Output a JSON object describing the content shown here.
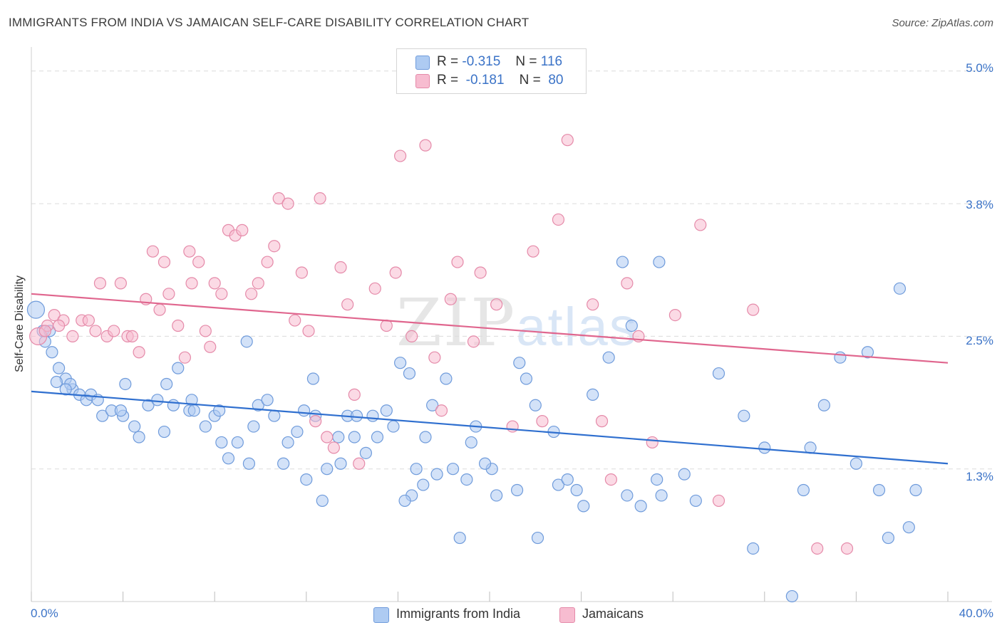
{
  "title": "IMMIGRANTS FROM INDIA VS JAMAICAN SELF-CARE DISABILITY CORRELATION CHART",
  "source": "Source: ZipAtlas.com",
  "watermark": {
    "zip": "ZIP",
    "atlas": "atlas"
  },
  "legend": {
    "series1": {
      "r_label": "R =",
      "r_value": "-0.315",
      "n_label": "N =",
      "n_value": "116"
    },
    "series2": {
      "r_label": "R =",
      "r_value": "-0.181",
      "n_label": "N =",
      "n_value": "80"
    }
  },
  "colors": {
    "blue_fill": "#aecbf2",
    "blue_stroke": "#6f9bdb",
    "blue_line": "#2f6fcf",
    "pink_fill": "#f7bcd0",
    "pink_stroke": "#e58aa9",
    "pink_line": "#e0668e",
    "tick_text": "#3b73c7",
    "grid": "#dcdcdc"
  },
  "chart_data": {
    "type": "scatter",
    "title": "IMMIGRANTS FROM INDIA VS JAMAICAN SELF-CARE DISABILITY CORRELATION CHART",
    "xlabel": "",
    "ylabel": "Self-Care Disability",
    "xlim": [
      0,
      40
    ],
    "ylim": [
      0,
      5.2
    ],
    "y_ticks": [
      {
        "value": 1.25,
        "label": "1.3%"
      },
      {
        "value": 2.5,
        "label": "2.5%"
      },
      {
        "value": 3.75,
        "label": "3.8%"
      },
      {
        "value": 5.0,
        "label": "5.0%"
      }
    ],
    "x_ticks": [
      {
        "value": 0,
        "label": "0.0%"
      },
      {
        "value": 40,
        "label": "40.0%"
      }
    ],
    "x_minor_ticks": [
      0,
      4,
      8,
      12,
      16,
      20,
      24,
      28,
      32,
      36,
      40
    ],
    "series": [
      {
        "name": "Immigrants from India",
        "color": "blue",
        "trend": {
          "x0": 0,
          "y0": 1.98,
          "x1": 40,
          "y1": 1.3
        },
        "points": [
          [
            0.2,
            2.75
          ],
          [
            0.5,
            2.55
          ],
          [
            0.6,
            2.45
          ],
          [
            0.9,
            2.35
          ],
          [
            1.2,
            2.2
          ],
          [
            1.5,
            2.1
          ],
          [
            1.8,
            2.0
          ],
          [
            2.1,
            1.95
          ],
          [
            2.4,
            1.9
          ],
          [
            1.1,
            2.07
          ],
          [
            1.7,
            2.05
          ],
          [
            2.6,
            1.95
          ],
          [
            3.1,
            1.75
          ],
          [
            3.5,
            1.8
          ],
          [
            4.0,
            1.75
          ],
          [
            4.5,
            1.65
          ],
          [
            4.7,
            1.55
          ],
          [
            5.1,
            1.85
          ],
          [
            5.5,
            1.9
          ],
          [
            5.8,
            1.6
          ],
          [
            5.9,
            2.05
          ],
          [
            6.2,
            1.85
          ],
          [
            6.9,
            1.8
          ],
          [
            7.0,
            1.9
          ],
          [
            7.6,
            1.65
          ],
          [
            8.0,
            1.75
          ],
          [
            8.3,
            1.5
          ],
          [
            8.6,
            1.35
          ],
          [
            9.0,
            1.5
          ],
          [
            9.4,
            2.45
          ],
          [
            9.5,
            1.3
          ],
          [
            9.7,
            1.65
          ],
          [
            9.9,
            1.85
          ],
          [
            10.6,
            1.75
          ],
          [
            11.0,
            1.3
          ],
          [
            11.2,
            1.5
          ],
          [
            11.6,
            1.6
          ],
          [
            11.9,
            1.8
          ],
          [
            12.0,
            1.15
          ],
          [
            12.3,
            2.1
          ],
          [
            12.7,
            0.95
          ],
          [
            12.9,
            1.25
          ],
          [
            13.4,
            1.55
          ],
          [
            13.5,
            1.3
          ],
          [
            13.8,
            1.75
          ],
          [
            14.2,
            1.75
          ],
          [
            14.6,
            1.4
          ],
          [
            14.9,
            1.75
          ],
          [
            15.1,
            1.55
          ],
          [
            15.5,
            1.8
          ],
          [
            15.8,
            1.65
          ],
          [
            16.1,
            2.25
          ],
          [
            16.5,
            2.15
          ],
          [
            16.6,
            1.0
          ],
          [
            16.8,
            1.25
          ],
          [
            17.2,
            1.55
          ],
          [
            17.5,
            1.85
          ],
          [
            17.7,
            1.2
          ],
          [
            18.1,
            2.1
          ],
          [
            18.4,
            1.25
          ],
          [
            18.7,
            0.6
          ],
          [
            19.0,
            1.15
          ],
          [
            19.2,
            1.5
          ],
          [
            19.4,
            1.65
          ],
          [
            20.1,
            1.25
          ],
          [
            20.3,
            1.0
          ],
          [
            21.3,
            2.25
          ],
          [
            21.6,
            2.1
          ],
          [
            22.0,
            1.85
          ],
          [
            22.1,
            0.6
          ],
          [
            23.0,
            1.1
          ],
          [
            23.4,
            1.15
          ],
          [
            23.8,
            1.05
          ],
          [
            24.5,
            1.95
          ],
          [
            25.2,
            2.3
          ],
          [
            25.8,
            3.2
          ],
          [
            26.0,
            1.0
          ],
          [
            26.2,
            2.6
          ],
          [
            27.3,
            1.15
          ],
          [
            27.4,
            3.2
          ],
          [
            27.5,
            1.0
          ],
          [
            28.5,
            1.2
          ],
          [
            30.0,
            2.15
          ],
          [
            31.1,
            1.75
          ],
          [
            32.0,
            1.45
          ],
          [
            33.7,
            1.05
          ],
          [
            34.6,
            1.85
          ],
          [
            36.0,
            1.3
          ],
          [
            37.0,
            1.05
          ],
          [
            37.9,
            2.95
          ],
          [
            38.3,
            0.7
          ],
          [
            38.6,
            1.05
          ],
          [
            1.5,
            2.0
          ],
          [
            2.9,
            1.9
          ],
          [
            3.9,
            1.8
          ],
          [
            4.1,
            2.05
          ],
          [
            6.4,
            2.2
          ],
          [
            7.1,
            1.8
          ],
          [
            8.2,
            1.8
          ],
          [
            10.3,
            1.9
          ],
          [
            12.4,
            1.75
          ],
          [
            14.1,
            1.55
          ],
          [
            16.3,
            0.95
          ],
          [
            17.1,
            1.1
          ],
          [
            19.8,
            1.3
          ],
          [
            21.2,
            1.05
          ],
          [
            22.8,
            1.6
          ],
          [
            24.1,
            0.9
          ],
          [
            26.6,
            0.9
          ],
          [
            29.0,
            0.95
          ],
          [
            31.5,
            0.5
          ],
          [
            33.2,
            0.05
          ],
          [
            35.3,
            2.3
          ],
          [
            36.5,
            2.35
          ],
          [
            37.4,
            0.6
          ],
          [
            34.0,
            1.45
          ],
          [
            0.8,
            2.55
          ]
        ]
      },
      {
        "name": "Jamaicans",
        "color": "pink",
        "trend": {
          "x0": 0,
          "y0": 2.9,
          "x1": 40,
          "y1": 2.25
        },
        "points": [
          [
            0.3,
            2.5
          ],
          [
            0.7,
            2.6
          ],
          [
            1.0,
            2.7
          ],
          [
            1.4,
            2.65
          ],
          [
            1.8,
            2.5
          ],
          [
            2.2,
            2.65
          ],
          [
            2.5,
            2.65
          ],
          [
            2.8,
            2.55
          ],
          [
            3.0,
            3.0
          ],
          [
            3.3,
            2.5
          ],
          [
            3.6,
            2.55
          ],
          [
            3.9,
            3.0
          ],
          [
            4.2,
            2.5
          ],
          [
            4.4,
            2.5
          ],
          [
            4.7,
            2.35
          ],
          [
            5.0,
            2.85
          ],
          [
            5.3,
            3.3
          ],
          [
            5.6,
            2.75
          ],
          [
            5.8,
            3.2
          ],
          [
            6.0,
            2.9
          ],
          [
            6.4,
            2.6
          ],
          [
            6.7,
            2.3
          ],
          [
            6.9,
            3.3
          ],
          [
            7.0,
            3.0
          ],
          [
            7.3,
            3.2
          ],
          [
            7.6,
            2.55
          ],
          [
            7.8,
            2.4
          ],
          [
            8.0,
            3.0
          ],
          [
            8.3,
            2.9
          ],
          [
            8.6,
            3.5
          ],
          [
            8.9,
            3.45
          ],
          [
            9.2,
            3.5
          ],
          [
            9.6,
            2.9
          ],
          [
            9.9,
            3.0
          ],
          [
            10.3,
            3.2
          ],
          [
            10.6,
            3.35
          ],
          [
            10.8,
            3.8
          ],
          [
            11.2,
            3.75
          ],
          [
            11.5,
            2.65
          ],
          [
            11.8,
            3.1
          ],
          [
            12.1,
            2.55
          ],
          [
            12.4,
            1.7
          ],
          [
            12.6,
            3.8
          ],
          [
            12.9,
            1.55
          ],
          [
            13.2,
            1.45
          ],
          [
            13.5,
            3.15
          ],
          [
            13.8,
            2.8
          ],
          [
            14.1,
            1.95
          ],
          [
            14.3,
            1.3
          ],
          [
            15.0,
            2.95
          ],
          [
            15.5,
            2.6
          ],
          [
            15.9,
            3.1
          ],
          [
            16.1,
            4.2
          ],
          [
            16.6,
            2.5
          ],
          [
            17.2,
            4.3
          ],
          [
            17.6,
            2.3
          ],
          [
            17.9,
            1.8
          ],
          [
            18.3,
            2.85
          ],
          [
            18.6,
            3.2
          ],
          [
            19.3,
            2.45
          ],
          [
            19.6,
            3.1
          ],
          [
            20.3,
            2.8
          ],
          [
            21.0,
            1.65
          ],
          [
            21.9,
            3.3
          ],
          [
            22.3,
            1.7
          ],
          [
            23.0,
            3.6
          ],
          [
            23.4,
            4.35
          ],
          [
            24.5,
            2.8
          ],
          [
            24.9,
            1.7
          ],
          [
            25.3,
            1.15
          ],
          [
            26.0,
            3.0
          ],
          [
            26.5,
            2.5
          ],
          [
            27.1,
            1.5
          ],
          [
            28.1,
            2.7
          ],
          [
            29.2,
            3.55
          ],
          [
            30.0,
            0.95
          ],
          [
            31.5,
            2.75
          ],
          [
            34.3,
            0.5
          ],
          [
            0.6,
            2.55
          ],
          [
            1.2,
            2.6
          ],
          [
            35.6,
            0.5
          ]
        ]
      }
    ]
  },
  "bottom_legend": {
    "series1": "Immigrants from India",
    "series2": "Jamaicans"
  }
}
